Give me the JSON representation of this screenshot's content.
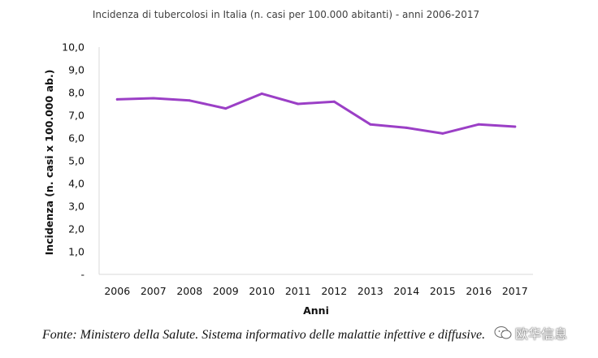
{
  "chart_data": {
    "type": "line",
    "title": "Incidenza di tubercolosi in Italia (n. casi per 100.000 abitanti) - anni 2006-2017",
    "xlabel": "Anni",
    "ylabel": "Incidenza (n. casi x 100.000 ab.)",
    "categories": [
      "2006",
      "2007",
      "2008",
      "2009",
      "2010",
      "2011",
      "2012",
      "2013",
      "2014",
      "2015",
      "2016",
      "2017"
    ],
    "series": [
      {
        "name": "Incidenza",
        "values": [
          7.7,
          7.75,
          7.65,
          7.3,
          7.95,
          7.5,
          7.6,
          6.6,
          6.45,
          6.2,
          6.6,
          6.5
        ]
      }
    ],
    "ylim": [
      0,
      10
    ],
    "yticks": [
      "-",
      "1,0",
      "2,0",
      "3,0",
      "4,0",
      "5,0",
      "6,0",
      "7,0",
      "8,0",
      "9,0",
      "10,0"
    ],
    "grid": false,
    "legend": "none",
    "line_color": "#9b3fc6"
  },
  "footer": {
    "source": "Fonte: Ministero della Salute. Sistema informativo delle malattie infettive e diffusive.",
    "watermark": "欧华信息",
    "watermark_icon": "chat-bubble-icon"
  }
}
